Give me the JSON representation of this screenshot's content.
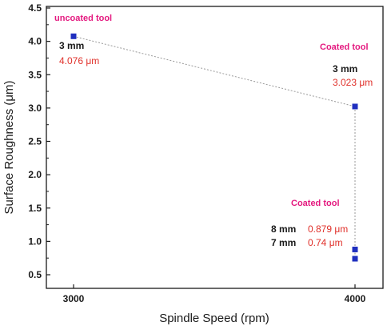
{
  "chart_data": {
    "type": "scatter",
    "xlabel": "Spindle Speed (rpm)",
    "ylabel": "Surface Roughness (μm)",
    "xlim": [
      2800,
      4100
    ],
    "ylim": [
      0.5,
      4.5
    ],
    "x_ticks": [
      "3000",
      "4000"
    ],
    "y_ticks": [
      "0.5",
      "1.0",
      "1.5",
      "2.0",
      "2.5",
      "3.0",
      "3.5",
      "4.0",
      "4.5"
    ],
    "grid": false,
    "series": [
      {
        "points": [
          {
            "x": 3000,
            "y": 4.076
          },
          {
            "x": 4000,
            "y": 3.023
          },
          {
            "x": 4000,
            "y": 0.879
          },
          {
            "x": 4000,
            "y": 0.74
          }
        ]
      }
    ],
    "annotations": {
      "uncoated_title": "uncoated tool",
      "uncoated_depth": "3 mm",
      "uncoated_value": "4.076 μm",
      "coated_top_title": "Coated tool",
      "coated_top_depth": "3 mm",
      "coated_top_value": "3.023 μm",
      "coated_bottom_title": "Coated tool",
      "coated_8_depth": "8 mm",
      "coated_8_value": "0.879 μm",
      "coated_7_depth": "7 mm",
      "coated_7_value": "0.74 μm"
    },
    "colors": {
      "marker": "#1f2fbf",
      "connector": "#9a9a9a",
      "annotation_title": "#e4197f",
      "annotation_value": "#e0302a"
    }
  }
}
